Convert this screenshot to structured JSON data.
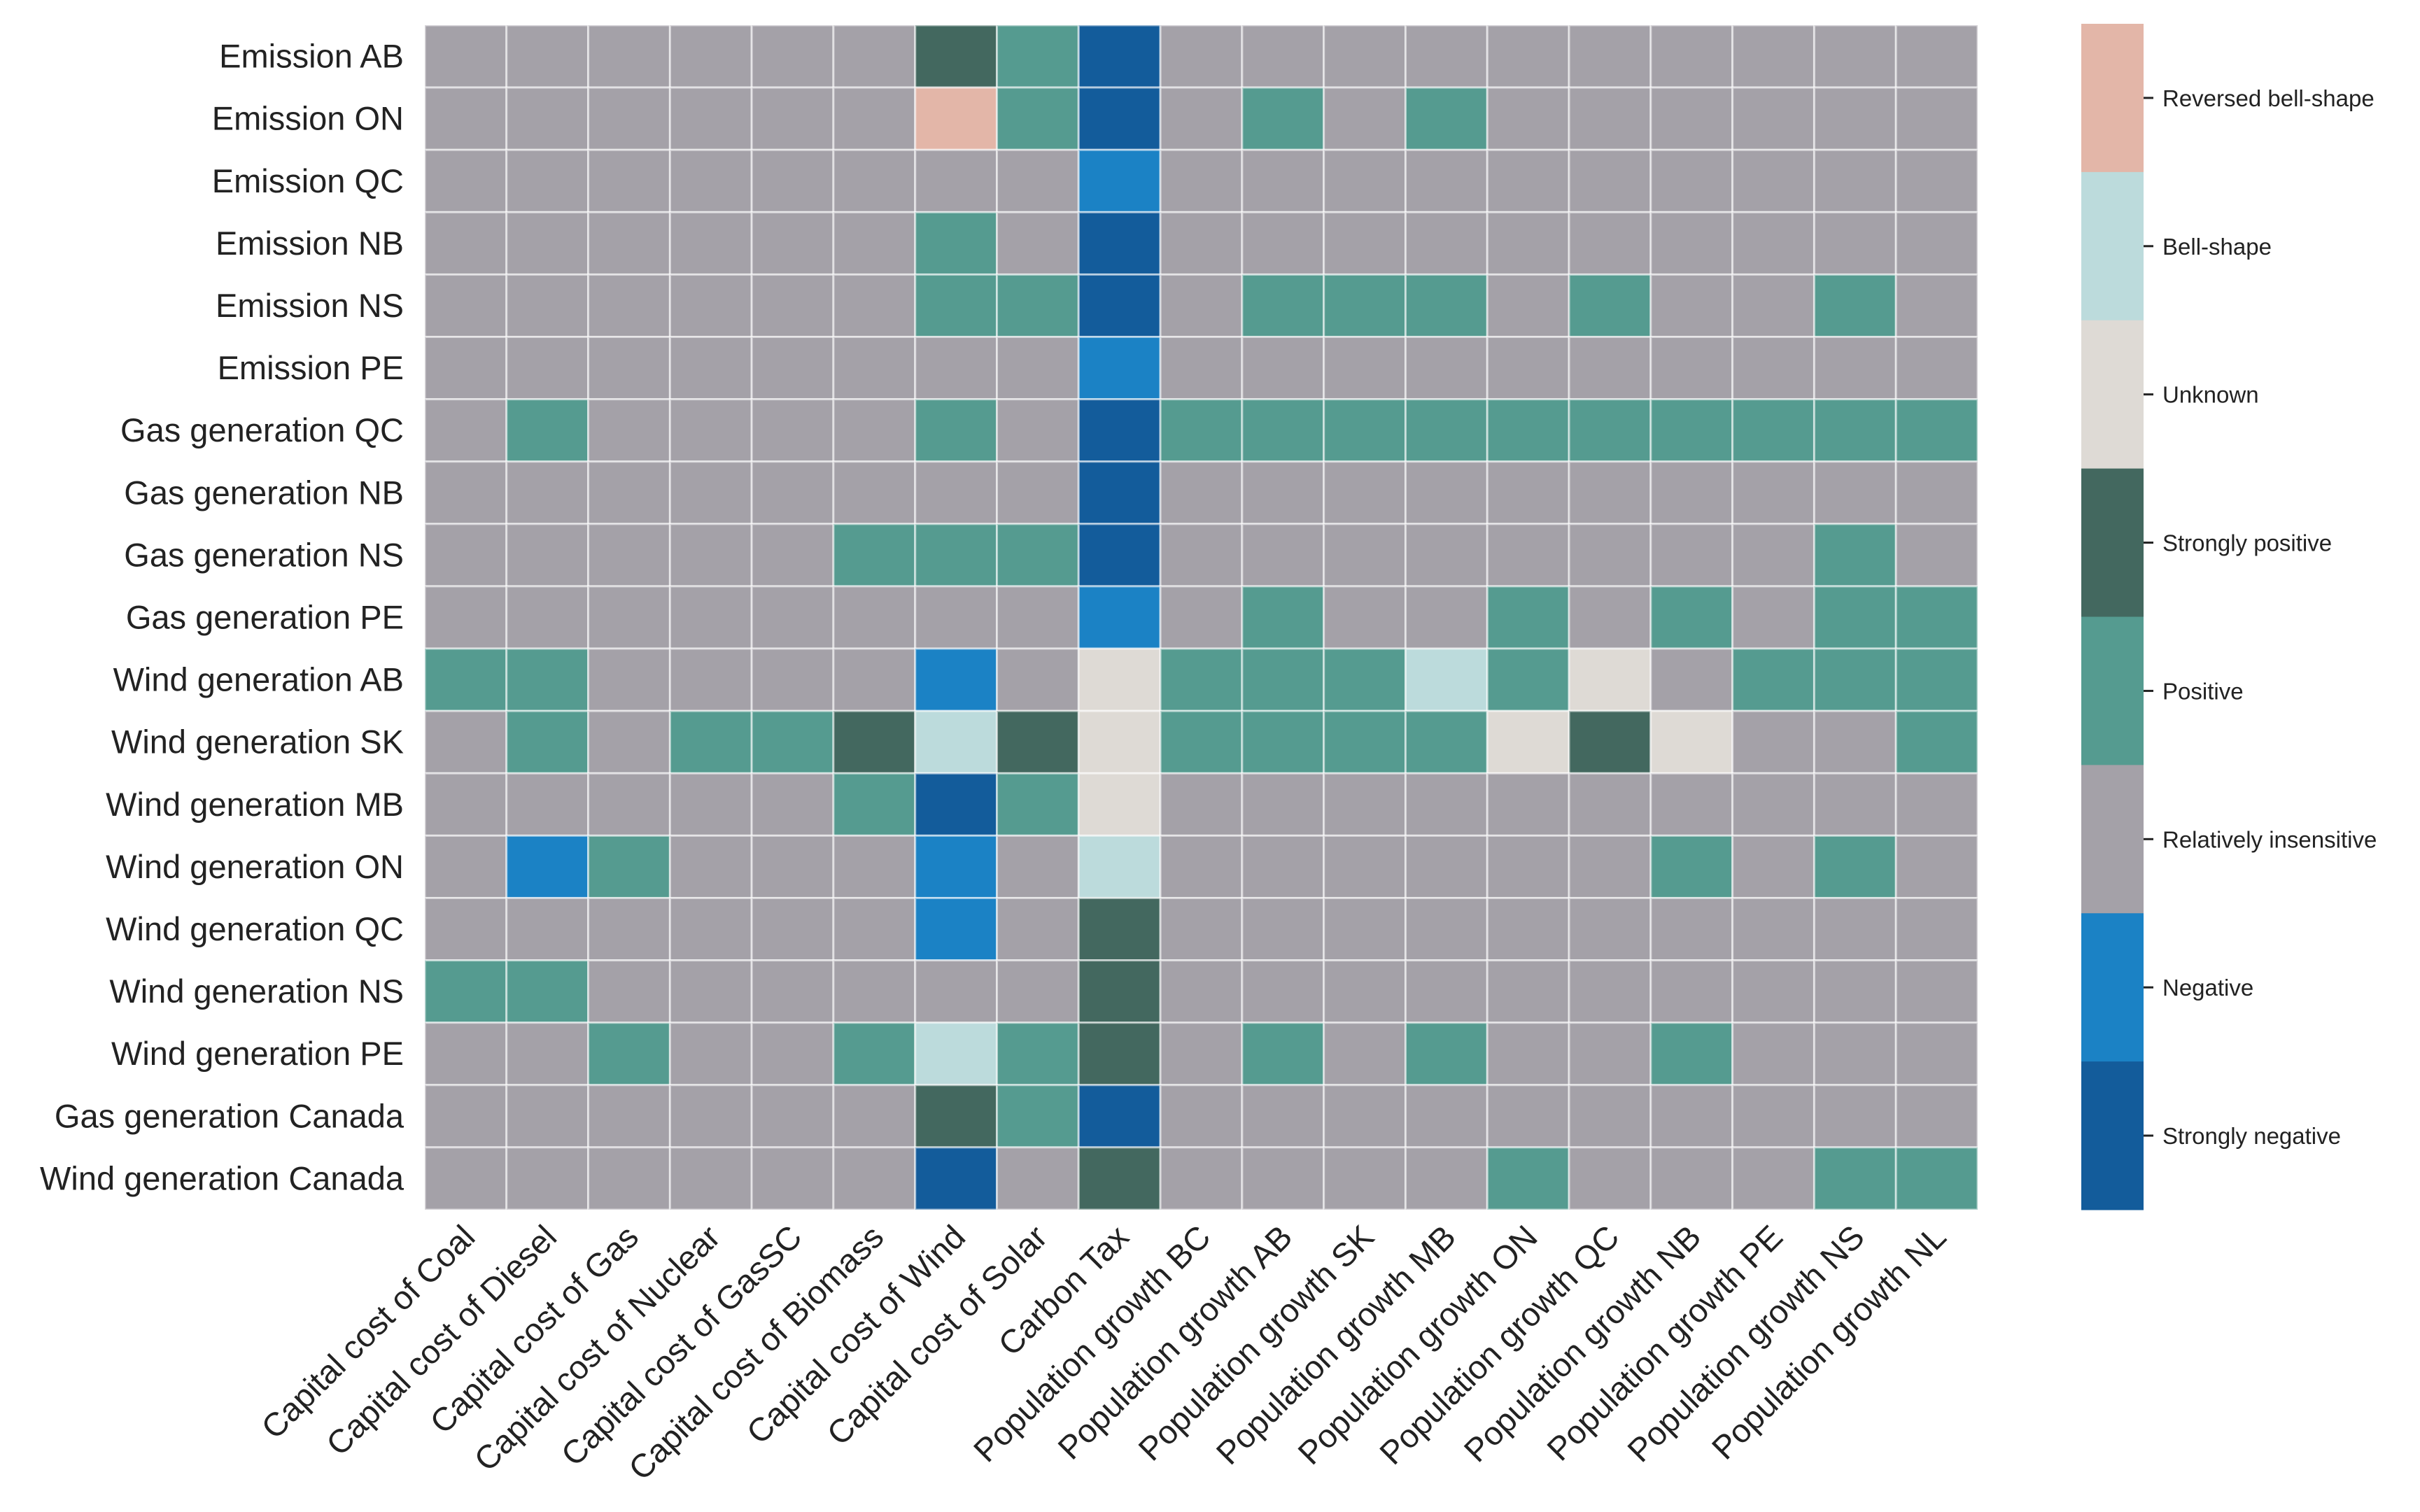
{
  "chart_data": {
    "type": "heatmap",
    "title": "",
    "xlabel": "",
    "ylabel": "",
    "rows": [
      "Emission AB",
      "Emission ON",
      "Emission QC",
      "Emission NB",
      "Emission NS",
      "Emission PE",
      "Gas generation QC",
      "Gas generation NB",
      "Gas generation NS",
      "Gas generation PE",
      "Wind generation AB",
      "Wind generation SK",
      "Wind generation MB",
      "Wind generation ON",
      "Wind generation QC",
      "Wind generation NS",
      "Wind generation PE",
      "Gas generation Canada",
      "Wind generation Canada"
    ],
    "columns": [
      "Capital cost of Coal",
      "Capital cost of Diesel",
      "Capital cost of Gas",
      "Capital cost of Nuclear",
      "Capital cost of GasSC",
      "Capital cost of Biomass",
      "Capital cost of Wind",
      "Capital cost of Solar",
      "Carbon Tax",
      "Population growth BC",
      "Population growth AB",
      "Population growth SK",
      "Population growth MB",
      "Population growth ON",
      "Population growth QC",
      "Population growth NB",
      "Population growth PE",
      "Population growth NS",
      "Population growth NL"
    ],
    "legend": {
      "title": "",
      "position": "right",
      "categories": [
        "Reversed bell-shape",
        "Bell-shape",
        "Unknown",
        "Strongly positive",
        "Positive",
        "Relatively insensitive",
        "Negative",
        "Strongly negative"
      ],
      "colors": [
        "#e3b6a8",
        "#bcdbdc",
        "#dedad5",
        "#43685f",
        "#559b90",
        "#a4a1a8",
        "#1b82c5",
        "#135c9b"
      ]
    },
    "category_codes": {
      "reversed_bell_shape": 7,
      "bell_shape": 6,
      "unknown": 5,
      "strongly_positive": 4,
      "positive": 3,
      "relatively_insensitive": 2,
      "negative": 1,
      "strongly_negative": 0
    },
    "values": [
      [
        2,
        2,
        2,
        2,
        2,
        2,
        4,
        3,
        0,
        2,
        2,
        2,
        2,
        2,
        2,
        2,
        2,
        2,
        2
      ],
      [
        2,
        2,
        2,
        2,
        2,
        2,
        7,
        3,
        0,
        2,
        3,
        2,
        3,
        2,
        2,
        2,
        2,
        2,
        2
      ],
      [
        2,
        2,
        2,
        2,
        2,
        2,
        2,
        2,
        1,
        2,
        2,
        2,
        2,
        2,
        2,
        2,
        2,
        2,
        2
      ],
      [
        2,
        2,
        2,
        2,
        2,
        2,
        3,
        2,
        0,
        2,
        2,
        2,
        2,
        2,
        2,
        2,
        2,
        2,
        2
      ],
      [
        2,
        2,
        2,
        2,
        2,
        2,
        3,
        3,
        0,
        2,
        3,
        3,
        3,
        2,
        3,
        2,
        2,
        3,
        2
      ],
      [
        2,
        2,
        2,
        2,
        2,
        2,
        2,
        2,
        1,
        2,
        2,
        2,
        2,
        2,
        2,
        2,
        2,
        2,
        2
      ],
      [
        2,
        3,
        2,
        2,
        2,
        2,
        3,
        2,
        0,
        3,
        3,
        3,
        3,
        3,
        3,
        3,
        3,
        3,
        3
      ],
      [
        2,
        2,
        2,
        2,
        2,
        2,
        2,
        2,
        0,
        2,
        2,
        2,
        2,
        2,
        2,
        2,
        2,
        2,
        2
      ],
      [
        2,
        2,
        2,
        2,
        2,
        3,
        3,
        3,
        0,
        2,
        2,
        2,
        2,
        2,
        2,
        2,
        2,
        3,
        2
      ],
      [
        2,
        2,
        2,
        2,
        2,
        2,
        2,
        2,
        1,
        2,
        3,
        2,
        2,
        3,
        2,
        3,
        2,
        3,
        3
      ],
      [
        3,
        3,
        2,
        2,
        2,
        2,
        1,
        2,
        5,
        3,
        3,
        3,
        6,
        3,
        5,
        2,
        3,
        3,
        3
      ],
      [
        2,
        3,
        2,
        3,
        3,
        4,
        6,
        4,
        5,
        3,
        3,
        3,
        3,
        5,
        4,
        5,
        2,
        2,
        3
      ],
      [
        2,
        2,
        2,
        2,
        2,
        3,
        0,
        3,
        5,
        2,
        2,
        2,
        2,
        2,
        2,
        2,
        2,
        2,
        2
      ],
      [
        2,
        1,
        3,
        2,
        2,
        2,
        1,
        2,
        6,
        2,
        2,
        2,
        2,
        2,
        2,
        3,
        2,
        3,
        2
      ],
      [
        2,
        2,
        2,
        2,
        2,
        2,
        1,
        2,
        4,
        2,
        2,
        2,
        2,
        2,
        2,
        2,
        2,
        2,
        2
      ],
      [
        3,
        3,
        2,
        2,
        2,
        2,
        2,
        2,
        4,
        2,
        2,
        2,
        2,
        2,
        2,
        2,
        2,
        2,
        2
      ],
      [
        2,
        2,
        3,
        2,
        2,
        3,
        6,
        3,
        4,
        2,
        3,
        2,
        3,
        2,
        2,
        3,
        2,
        2,
        2
      ],
      [
        2,
        2,
        2,
        2,
        2,
        2,
        4,
        3,
        0,
        2,
        2,
        2,
        2,
        2,
        2,
        2,
        2,
        2,
        2
      ],
      [
        2,
        2,
        2,
        2,
        2,
        2,
        0,
        2,
        4,
        2,
        2,
        2,
        2,
        3,
        2,
        2,
        2,
        3,
        3
      ]
    ]
  }
}
